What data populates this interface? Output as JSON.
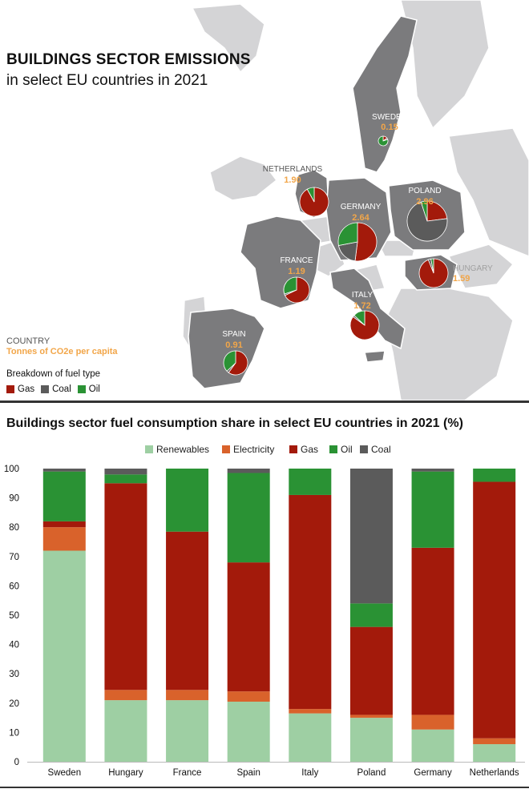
{
  "map": {
    "title": "BUILDINGS SECTOR EMISSIONS",
    "subtitle": "in select EU countries in 2021",
    "key_country": "COUNTRY",
    "key_tonnes": "Tonnes of CO2e per capita",
    "key_breakdown": "Breakdown of fuel type",
    "legend": [
      {
        "label": "Gas",
        "color": "#a31a0b"
      },
      {
        "label": "Coal",
        "color": "#5b5b5b"
      },
      {
        "label": "Oil",
        "color": "#2a9234"
      }
    ],
    "countries": [
      {
        "name": "SWEDEN",
        "value": "0.15",
        "pie": [
          {
            "fuel": "Gas",
            "share": 0.15
          },
          {
            "fuel": "Coal",
            "share": 0.05
          },
          {
            "fuel": "Oil",
            "share": 0.8
          }
        ]
      },
      {
        "name": "NETHERLANDS",
        "value": "1.90",
        "pie": [
          {
            "fuel": "Gas",
            "share": 0.92
          },
          {
            "fuel": "Coal",
            "share": 0.0
          },
          {
            "fuel": "Oil",
            "share": 0.08
          }
        ]
      },
      {
        "name": "POLAND",
        "value": "2.96",
        "pie": [
          {
            "fuel": "Gas",
            "share": 0.23
          },
          {
            "fuel": "Coal",
            "share": 0.72
          },
          {
            "fuel": "Oil",
            "share": 0.05
          }
        ]
      },
      {
        "name": "GERMANY",
        "value": "2.64",
        "pie": [
          {
            "fuel": "Gas",
            "share": 0.52
          },
          {
            "fuel": "Coal",
            "share": 0.2
          },
          {
            "fuel": "Oil",
            "share": 0.28
          }
        ]
      },
      {
        "name": "FRANCE",
        "value": "1.19",
        "pie": [
          {
            "fuel": "Gas",
            "share": 0.68
          },
          {
            "fuel": "Coal",
            "share": 0.02
          },
          {
            "fuel": "Oil",
            "share": 0.3
          }
        ]
      },
      {
        "name": "HUNGARY",
        "value": "1.59",
        "pie": [
          {
            "fuel": "Gas",
            "share": 0.94
          },
          {
            "fuel": "Coal",
            "share": 0.03
          },
          {
            "fuel": "Oil",
            "share": 0.03
          }
        ]
      },
      {
        "name": "ITALY",
        "value": "1.72",
        "pie": [
          {
            "fuel": "Gas",
            "share": 0.85
          },
          {
            "fuel": "Coal",
            "share": 0.02
          },
          {
            "fuel": "Oil",
            "share": 0.13
          }
        ]
      },
      {
        "name": "SPAIN",
        "value": "0.91",
        "pie": [
          {
            "fuel": "Gas",
            "share": 0.6
          },
          {
            "fuel": "Coal",
            "share": 0.03
          },
          {
            "fuel": "Oil",
            "share": 0.37
          }
        ]
      }
    ]
  },
  "chart_title": "Buildings sector fuel consumption share in select EU countries in 2021 (%)",
  "chart_data": {
    "type": "bar",
    "stacked": true,
    "categories": [
      "Sweden",
      "Hungary",
      "France",
      "Spain",
      "Italy",
      "Poland",
      "Germany",
      "Netherlands"
    ],
    "series": [
      {
        "name": "Renewables",
        "color": "#9ecfa3",
        "values": [
          72,
          21,
          21,
          20.5,
          16.5,
          15,
          11,
          6
        ]
      },
      {
        "name": "Electricity",
        "color": "#d9622b",
        "values": [
          8,
          3.5,
          3.5,
          3.5,
          1.5,
          1,
          5,
          2
        ]
      },
      {
        "name": "Gas",
        "color": "#a31a0b",
        "values": [
          2,
          70.5,
          54,
          44,
          73,
          30,
          57,
          87.5
        ]
      },
      {
        "name": "Oil",
        "color": "#2a9234",
        "values": [
          17,
          3,
          21.5,
          30.5,
          9,
          8,
          26,
          4.5
        ]
      },
      {
        "name": "Coal",
        "color": "#5b5b5b",
        "values": [
          1,
          2,
          0,
          1.5,
          0,
          46,
          1,
          0
        ]
      }
    ],
    "ylim": [
      0,
      100
    ],
    "yticks": [
      0,
      10,
      20,
      30,
      40,
      50,
      60,
      70,
      80,
      90,
      100
    ],
    "legend_position": "top-center",
    "grid": false
  }
}
